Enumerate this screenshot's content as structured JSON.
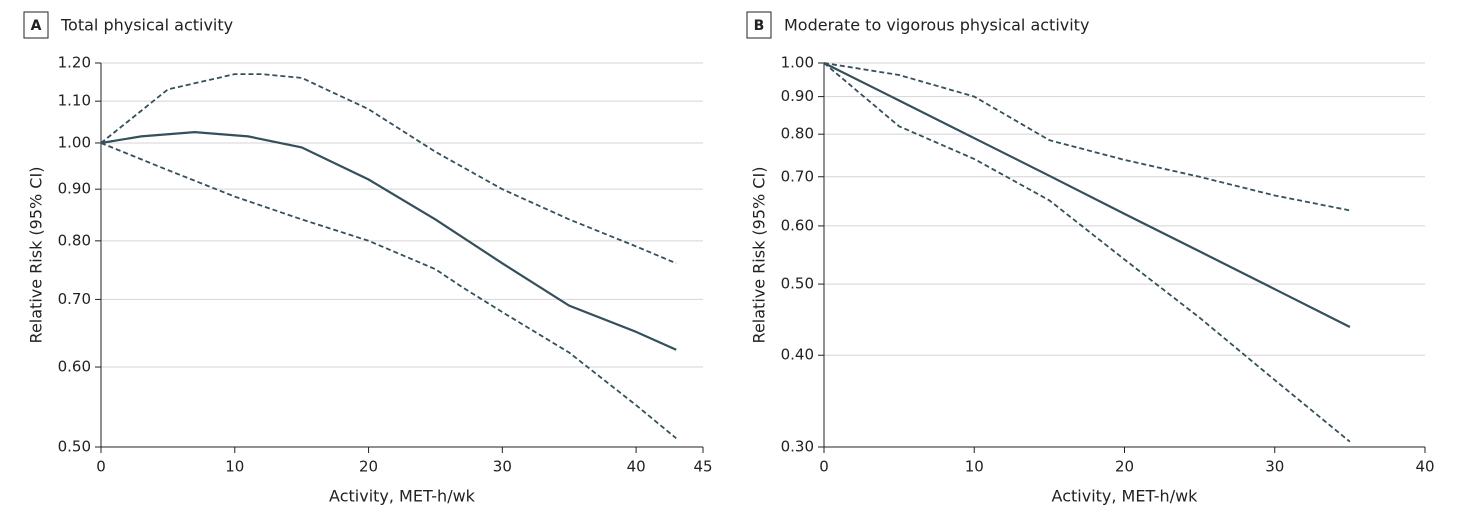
{
  "chart_data": [
    {
      "type": "line",
      "panel": "A",
      "title": "Total physical activity",
      "x_label": "Activity, MET-h/wk",
      "y_label": "Relative Risk (95% CI)",
      "log_y": true,
      "grid": true,
      "xlim": [
        0,
        45
      ],
      "xticks": [
        0,
        10,
        20,
        30,
        40,
        45
      ],
      "ylim": [
        0.5,
        1.2
      ],
      "yticks": [
        {
          "value": 0.5,
          "label": "0.50"
        },
        {
          "value": 0.6,
          "label": "0.60"
        },
        {
          "value": 0.7,
          "label": "0.70"
        },
        {
          "value": 0.8,
          "label": "0.80"
        },
        {
          "value": 0.9,
          "label": "0.90"
        },
        {
          "value": 1.0,
          "label": "1.00"
        },
        {
          "value": 1.1,
          "label": "1.10"
        },
        {
          "value": 1.2,
          "label": "1.20"
        }
      ],
      "series": [
        {
          "color": "#34505c",
          "line_style": "solid",
          "x": [
            0,
            3,
            7,
            11,
            15,
            20,
            25,
            30,
            35,
            40,
            43
          ],
          "values": [
            1.0,
            1.015,
            1.025,
            1.015,
            0.99,
            0.92,
            0.84,
            0.76,
            0.69,
            0.65,
            0.624
          ]
        },
        {
          "color": "#34505c",
          "line_style": "dashed",
          "x": [
            0,
            5,
            10,
            12,
            15,
            20,
            25,
            30,
            35,
            40,
            43
          ],
          "values": [
            1.0,
            1.13,
            1.17,
            1.17,
            1.16,
            1.08,
            0.98,
            0.9,
            0.84,
            0.79,
            0.76
          ]
        },
        {
          "color": "#34505c",
          "line_style": "dashed",
          "x": [
            0,
            5,
            10,
            15,
            20,
            25,
            27,
            30,
            35,
            40,
            43
          ],
          "values": [
            1.0,
            0.94,
            0.885,
            0.84,
            0.8,
            0.75,
            0.72,
            0.68,
            0.62,
            0.55,
            0.51
          ]
        }
      ]
    },
    {
      "type": "line",
      "panel": "B",
      "title": "Moderate to vigorous physical activity",
      "x_label": "Activity, MET-h/wk",
      "y_label": "Relative Risk (95% CI)",
      "log_y": true,
      "grid": true,
      "xlim": [
        0,
        40
      ],
      "xticks": [
        0,
        10,
        20,
        30,
        40
      ],
      "ylim": [
        0.3,
        1.0
      ],
      "yticks": [
        {
          "value": 0.3,
          "label": "0.30"
        },
        {
          "value": 0.4,
          "label": "0.40"
        },
        {
          "value": 0.5,
          "label": "0.50"
        },
        {
          "value": 0.6,
          "label": "0.60"
        },
        {
          "value": 0.7,
          "label": "0.70"
        },
        {
          "value": 0.8,
          "label": "0.80"
        },
        {
          "value": 0.9,
          "label": "0.90"
        },
        {
          "value": 1.0,
          "label": "1.00"
        }
      ],
      "series": [
        {
          "color": "#34505c",
          "line_style": "solid",
          "x": [
            0,
            5,
            10,
            15,
            20,
            25,
            30,
            35
          ],
          "values": [
            1.0,
            0.889,
            0.79,
            0.702,
            0.623,
            0.554,
            0.492,
            0.437
          ]
        },
        {
          "color": "#34505c",
          "line_style": "dashed",
          "x": [
            0,
            5,
            10,
            15,
            20,
            25,
            30,
            35
          ],
          "values": [
            1.0,
            0.963,
            0.9,
            0.785,
            0.738,
            0.7,
            0.66,
            0.63
          ]
        },
        {
          "color": "#34505c",
          "line_style": "dashed",
          "x": [
            0,
            5,
            10,
            15,
            20,
            25,
            30,
            35
          ],
          "values": [
            1.0,
            0.82,
            0.74,
            0.65,
            0.54,
            0.45,
            0.37,
            0.305
          ]
        }
      ]
    }
  ]
}
